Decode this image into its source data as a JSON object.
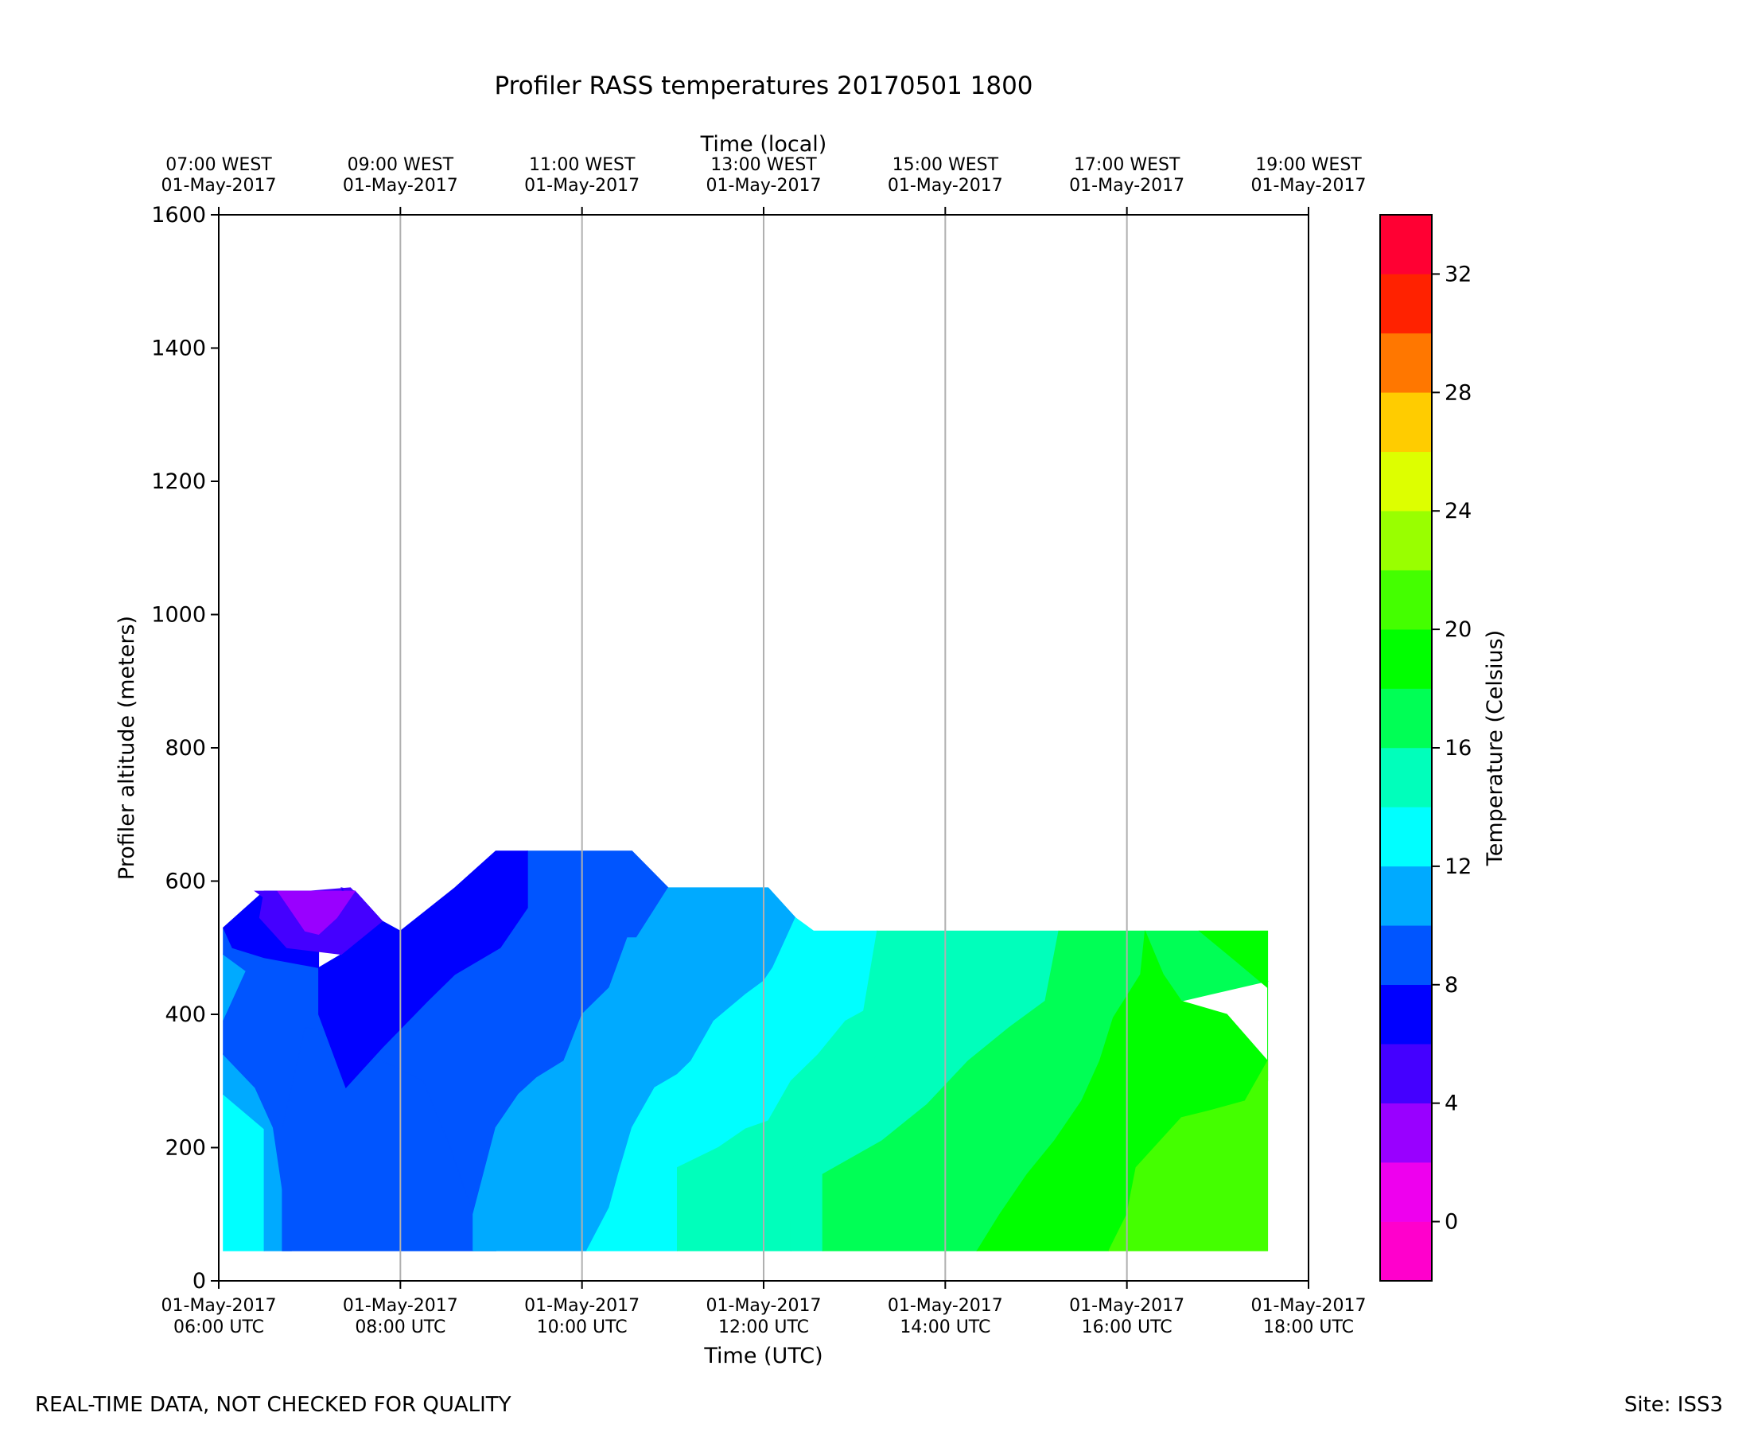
{
  "chart_data": {
    "type": "heatmap",
    "title": "Profiler RASS temperatures 20170501 1800",
    "xlabel": "Time (UTC)",
    "x2label": "Time (local)",
    "ylabel": "Profiler altitude (meters)",
    "colorbar_label": "Temperature (Celsius)",
    "xlim_hours_utc": [
      6,
      18
    ],
    "ylim": [
      0,
      1600
    ],
    "grid": "vertical lines at each labeled UTC tick",
    "x_ticks_utc": [
      {
        "hour": 6,
        "line1": "01-May-2017",
        "line2": "06:00 UTC"
      },
      {
        "hour": 8,
        "line1": "01-May-2017",
        "line2": "08:00 UTC"
      },
      {
        "hour": 10,
        "line1": "01-May-2017",
        "line2": "10:00 UTC"
      },
      {
        "hour": 12,
        "line1": "01-May-2017",
        "line2": "12:00 UTC"
      },
      {
        "hour": 14,
        "line1": "01-May-2017",
        "line2": "14:00 UTC"
      },
      {
        "hour": 16,
        "line1": "01-May-2017",
        "line2": "16:00 UTC"
      },
      {
        "hour": 18,
        "line1": "01-May-2017",
        "line2": "18:00 UTC"
      }
    ],
    "x_ticks_local": [
      {
        "hour": 6,
        "line1": "07:00 WEST",
        "line2": "01-May-2017"
      },
      {
        "hour": 8,
        "line1": "09:00 WEST",
        "line2": "01-May-2017"
      },
      {
        "hour": 10,
        "line1": "11:00 WEST",
        "line2": "01-May-2017"
      },
      {
        "hour": 12,
        "line1": "13:00 WEST",
        "line2": "01-May-2017"
      },
      {
        "hour": 14,
        "line1": "15:00 WEST",
        "line2": "01-May-2017"
      },
      {
        "hour": 16,
        "line1": "17:00 WEST",
        "line2": "01-May-2017"
      },
      {
        "hour": 18,
        "line1": "19:00 WEST",
        "line2": "01-May-2017"
      }
    ],
    "y_ticks": [
      0,
      200,
      400,
      600,
      800,
      1000,
      1200,
      1400,
      1600
    ],
    "colorbar": {
      "min": -2,
      "max": 34,
      "tick_values": [
        0,
        4,
        8,
        12,
        16,
        20,
        24,
        28,
        32
      ],
      "levels": [
        {
          "from": -2,
          "to": 0,
          "color": "#ff00cc"
        },
        {
          "from": 0,
          "to": 2,
          "color": "#ee00ee"
        },
        {
          "from": 2,
          "to": 4,
          "color": "#9900ff"
        },
        {
          "from": 4,
          "to": 6,
          "color": "#4400ff"
        },
        {
          "from": 6,
          "to": 8,
          "color": "#0000ff"
        },
        {
          "from": 8,
          "to": 10,
          "color": "#0055ff"
        },
        {
          "from": 10,
          "to": 12,
          "color": "#00aaff"
        },
        {
          "from": 12,
          "to": 14,
          "color": "#00ffff"
        },
        {
          "from": 14,
          "to": 16,
          "color": "#00ffbb"
        },
        {
          "from": 16,
          "to": 18,
          "color": "#00ff55"
        },
        {
          "from": 18,
          "to": 20,
          "color": "#00ff00"
        },
        {
          "from": 20,
          "to": 22,
          "color": "#44ff00"
        },
        {
          "from": 22,
          "to": 24,
          "color": "#99ff00"
        },
        {
          "from": 24,
          "to": 26,
          "color": "#ddff00"
        },
        {
          "from": 26,
          "to": 28,
          "color": "#ffcc00"
        },
        {
          "from": 28,
          "to": 30,
          "color": "#ff7700"
        },
        {
          "from": 30,
          "to": 32,
          "color": "#ff2200"
        },
        {
          "from": 32,
          "to": 34,
          "color": "#ff0033"
        }
      ]
    },
    "contour_regions": [
      {
        "level": 12,
        "points": [
          [
            6.05,
            45
          ],
          [
            6.05,
            280
          ],
          [
            6.5,
            228
          ],
          [
            6.5,
            45
          ]
        ]
      },
      {
        "level": 10,
        "points": [
          [
            6.05,
            280
          ],
          [
            6.05,
            340
          ],
          [
            6.4,
            290
          ],
          [
            6.6,
            230
          ],
          [
            6.8,
            45
          ],
          [
            6.5,
            45
          ],
          [
            6.5,
            228
          ]
        ]
      },
      {
        "level": 10,
        "points": [
          [
            6.05,
            390
          ],
          [
            6.05,
            490
          ],
          [
            6.3,
            465
          ]
        ]
      },
      {
        "level": 8,
        "points": [
          [
            6.05,
            340
          ],
          [
            6.05,
            390
          ],
          [
            6.3,
            465
          ],
          [
            6.05,
            490
          ],
          [
            6.05,
            530
          ],
          [
            6.15,
            500
          ],
          [
            6.5,
            485
          ],
          [
            7.1,
            470
          ],
          [
            7.1,
            400
          ],
          [
            7.4,
            290
          ],
          [
            7.8,
            350
          ],
          [
            8.3,
            420
          ],
          [
            8.6,
            460
          ],
          [
            9.1,
            500
          ],
          [
            9.4,
            560
          ],
          [
            9.4,
            645
          ],
          [
            10.55,
            645
          ],
          [
            10.95,
            590
          ],
          [
            10.6,
            515
          ],
          [
            10.5,
            515
          ],
          [
            10.3,
            440
          ],
          [
            10,
            400
          ],
          [
            9.8,
            330
          ],
          [
            9.5,
            305
          ],
          [
            9.3,
            280
          ],
          [
            9.05,
            230
          ],
          [
            9.05,
            45
          ],
          [
            8.8,
            45
          ],
          [
            8.8,
            100
          ],
          [
            8.55,
            200
          ],
          [
            8.25,
            300
          ],
          [
            7.8,
            330
          ],
          [
            7.5,
            360
          ],
          [
            7.2,
            375
          ],
          [
            6.95,
            380
          ],
          [
            6.8,
            45
          ],
          [
            6.6,
            230
          ],
          [
            6.4,
            290
          ]
        ]
      },
      {
        "level": 8,
        "points": [
          [
            6.7,
            45
          ],
          [
            6.7,
            230
          ],
          [
            6.95,
            380
          ],
          [
            7.2,
            375
          ],
          [
            7.5,
            360
          ],
          [
            7.8,
            330
          ],
          [
            8.25,
            300
          ],
          [
            8.55,
            200
          ],
          [
            8.8,
            100
          ],
          [
            8.8,
            45
          ]
        ]
      },
      {
        "level": 6,
        "points": [
          [
            6.05,
            530
          ],
          [
            6.5,
            585
          ],
          [
            6.75,
            585
          ],
          [
            7.1,
            555
          ],
          [
            7.1,
            470
          ],
          [
            6.5,
            485
          ],
          [
            6.15,
            500
          ]
        ]
      },
      {
        "level": 6,
        "points": [
          [
            7.1,
            470
          ],
          [
            7.1,
            400
          ],
          [
            7.4,
            290
          ],
          [
            7.8,
            350
          ],
          [
            8.3,
            420
          ],
          [
            8.6,
            460
          ],
          [
            9.1,
            500
          ],
          [
            9.4,
            560
          ],
          [
            9.4,
            645
          ],
          [
            9.05,
            645
          ],
          [
            8.6,
            590
          ],
          [
            8,
            525
          ],
          [
            7.8,
            540
          ],
          [
            7.5,
            585
          ],
          [
            7.35,
            590
          ],
          [
            7.35,
            490
          ]
        ]
      },
      {
        "level": 4,
        "points": [
          [
            6.5,
            585
          ],
          [
            6.4,
            585
          ],
          [
            6.7,
            555
          ],
          [
            7.05,
            510
          ],
          [
            7.35,
            490
          ],
          [
            7.35,
            590
          ],
          [
            7.8,
            540
          ],
          [
            7.45,
            590
          ],
          [
            7.0,
            585
          ]
        ]
      },
      {
        "level": 4,
        "points": [
          [
            6.5,
            585
          ],
          [
            7.5,
            585
          ],
          [
            7.8,
            540
          ],
          [
            7.35,
            490
          ],
          [
            6.75,
            500
          ],
          [
            6.45,
            545
          ]
        ]
      },
      {
        "level": 2,
        "points": [
          [
            6.65,
            585
          ],
          [
            7.5,
            585
          ],
          [
            7.3,
            545
          ],
          [
            7.1,
            520
          ],
          [
            6.95,
            525
          ]
        ]
      },
      {
        "level": 10,
        "points": [
          [
            8.8,
            45
          ],
          [
            8.8,
            100
          ],
          [
            9.05,
            230
          ],
          [
            9.05,
            45
          ]
        ]
      },
      {
        "level": 10,
        "points": [
          [
            9.05,
            45
          ],
          [
            9.05,
            230
          ],
          [
            9.3,
            280
          ],
          [
            9.5,
            305
          ],
          [
            9.8,
            330
          ],
          [
            10,
            400
          ],
          [
            10.3,
            440
          ],
          [
            10.5,
            515
          ],
          [
            10.6,
            515
          ],
          [
            10.95,
            590
          ],
          [
            12.05,
            590
          ],
          [
            12.35,
            545
          ],
          [
            12.1,
            470
          ],
          [
            12,
            450
          ],
          [
            11.8,
            430
          ],
          [
            11.45,
            390
          ],
          [
            11.2,
            330
          ],
          [
            11.05,
            310
          ],
          [
            10.8,
            290
          ],
          [
            10.55,
            230
          ],
          [
            10.4,
            160
          ],
          [
            10.3,
            110
          ],
          [
            10.05,
            45
          ]
        ]
      },
      {
        "level": 12,
        "points": [
          [
            10.05,
            45
          ],
          [
            10.3,
            110
          ],
          [
            10.4,
            160
          ],
          [
            10.55,
            230
          ],
          [
            10.8,
            290
          ],
          [
            11.05,
            310
          ],
          [
            11.2,
            330
          ],
          [
            11.45,
            390
          ],
          [
            11.8,
            430
          ],
          [
            12,
            450
          ],
          [
            12.1,
            470
          ],
          [
            12.35,
            545
          ],
          [
            12.55,
            525
          ],
          [
            13.25,
            525
          ],
          [
            13.1,
            405
          ],
          [
            12.9,
            390
          ],
          [
            12.6,
            340
          ],
          [
            12.3,
            300
          ],
          [
            12.05,
            240
          ],
          [
            11.8,
            228
          ],
          [
            11.5,
            200
          ],
          [
            11.05,
            170
          ],
          [
            11.05,
            45
          ]
        ]
      },
      {
        "level": 14,
        "points": [
          [
            11.05,
            45
          ],
          [
            11.05,
            170
          ],
          [
            11.5,
            200
          ],
          [
            11.8,
            228
          ],
          [
            12.05,
            240
          ],
          [
            12.3,
            300
          ],
          [
            12.6,
            340
          ],
          [
            12.9,
            390
          ],
          [
            13.1,
            405
          ],
          [
            13.25,
            525
          ],
          [
            14.0,
            525
          ],
          [
            13.9,
            460
          ],
          [
            13.6,
            410
          ],
          [
            13.2,
            330
          ],
          [
            12.85,
            270
          ],
          [
            12.6,
            210
          ],
          [
            12.2,
            150
          ],
          [
            12.3,
            90
          ],
          [
            12.3,
            45
          ]
        ]
      },
      {
        "level": 14,
        "points": [
          [
            12.3,
            45
          ],
          [
            12.3,
            90
          ],
          [
            12.2,
            150
          ],
          [
            12.6,
            210
          ],
          [
            12.85,
            270
          ],
          [
            13.2,
            330
          ],
          [
            13.6,
            410
          ],
          [
            13.9,
            460
          ],
          [
            14.0,
            525
          ],
          [
            15.25,
            525
          ],
          [
            15.1,
            420
          ],
          [
            14.7,
            380
          ],
          [
            14.25,
            330
          ],
          [
            13.8,
            265
          ],
          [
            13.3,
            210
          ],
          [
            12.65,
            160
          ],
          [
            12.65,
            45
          ]
        ]
      },
      {
        "level": 16,
        "points": [
          [
            12.65,
            45
          ],
          [
            12.65,
            160
          ],
          [
            13.3,
            210
          ],
          [
            13.8,
            265
          ],
          [
            14.25,
            330
          ],
          [
            14.7,
            380
          ],
          [
            15.1,
            420
          ],
          [
            15.25,
            525
          ],
          [
            16.2,
            525
          ],
          [
            16.15,
            460
          ],
          [
            15.85,
            395
          ],
          [
            15.7,
            330
          ],
          [
            15.5,
            270
          ],
          [
            15.2,
            210
          ],
          [
            14.9,
            160
          ],
          [
            14.6,
            100
          ],
          [
            14.35,
            45
          ]
        ]
      },
      {
        "level": 16,
        "points": [
          [
            16.2,
            525
          ],
          [
            16.8,
            525
          ],
          [
            17.2,
            480
          ],
          [
            17.55,
            450
          ],
          [
            16.6,
            420
          ],
          [
            16.4,
            460
          ]
        ]
      },
      {
        "level": 18,
        "points": [
          [
            14.35,
            45
          ],
          [
            14.6,
            100
          ],
          [
            14.9,
            160
          ],
          [
            15.2,
            210
          ],
          [
            15.5,
            270
          ],
          [
            15.7,
            330
          ],
          [
            15.85,
            395
          ],
          [
            16.15,
            460
          ],
          [
            16.2,
            525
          ],
          [
            16.4,
            460
          ],
          [
            16.6,
            420
          ],
          [
            17.1,
            400
          ],
          [
            17.55,
            330
          ],
          [
            17.55,
            440
          ],
          [
            17.2,
            480
          ],
          [
            16.8,
            525
          ],
          [
            17.55,
            525
          ],
          [
            17.55,
            300
          ],
          [
            17.3,
            270
          ],
          [
            16.9,
            255
          ],
          [
            16.6,
            245
          ],
          [
            16.4,
            215
          ],
          [
            16.1,
            170
          ],
          [
            16,
            100
          ],
          [
            15.8,
            45
          ]
        ]
      },
      {
        "level": 20,
        "points": [
          [
            15.8,
            45
          ],
          [
            16,
            100
          ],
          [
            16.1,
            170
          ],
          [
            16.4,
            215
          ],
          [
            16.6,
            245
          ],
          [
            16.9,
            255
          ],
          [
            17.3,
            270
          ],
          [
            17.55,
            330
          ],
          [
            17.55,
            45
          ]
        ]
      }
    ],
    "footer_left": "REAL-TIME DATA, NOT CHECKED FOR QUALITY",
    "footer_right": "Site: ISS3"
  }
}
